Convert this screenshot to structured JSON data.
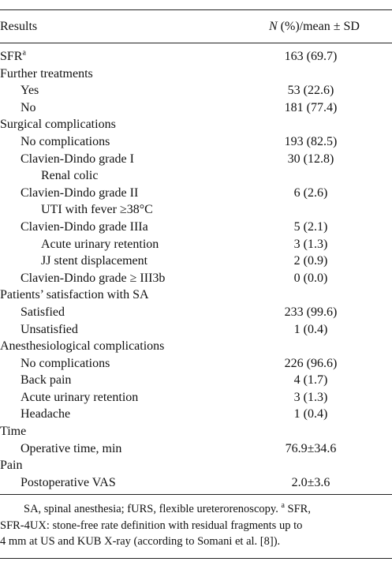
{
  "table": {
    "header": {
      "col1": "Results",
      "col2_italic": "N",
      "col2_rest": " (%)/mean ± SD"
    },
    "rows": [
      {
        "label": "SFR",
        "sup": "a",
        "value": "163 (69.7)",
        "level": 0
      },
      {
        "label": "Further treatments",
        "value": "",
        "level": 0
      },
      {
        "label": "Yes",
        "value": "53 (22.6)",
        "level": 1
      },
      {
        "label": "No",
        "value": "181 (77.4)",
        "level": 1
      },
      {
        "label": "Surgical complications",
        "value": "",
        "level": 0
      },
      {
        "label": "No complications",
        "value": "193 (82.5)",
        "level": 1
      },
      {
        "label": "Clavien-Dindo grade I",
        "value": "30 (12.8)",
        "level": 1
      },
      {
        "label": "Renal colic",
        "value": "",
        "level": 2
      },
      {
        "label": "Clavien-Dindo grade II",
        "value": "6 (2.6)",
        "level": 1
      },
      {
        "label": "UTI with fever ≥38°C",
        "value": "",
        "level": 2
      },
      {
        "label": "Clavien-Dindo grade IIIa",
        "value": "5 (2.1)",
        "level": 1
      },
      {
        "label": "Acute urinary retention",
        "value": "3 (1.3)",
        "level": 2
      },
      {
        "label": "JJ stent displacement",
        "value": "2 (0.9)",
        "level": 2
      },
      {
        "label": "Clavien-Dindo grade ≥ III3b",
        "value": "0 (0.0)",
        "level": 1
      },
      {
        "label": "Patients’ satisfaction with SA",
        "value": "",
        "level": 0
      },
      {
        "label": "Satisfied",
        "value": "233 (99.6)",
        "level": 1
      },
      {
        "label": "Unsatisfied",
        "value": "1 (0.4)",
        "level": 1
      },
      {
        "label": "Anesthesiological complications",
        "value": "",
        "level": 0
      },
      {
        "label": "No complications",
        "value": "226 (96.6)",
        "level": 1
      },
      {
        "label": "Back pain",
        "value": "4 (1.7)",
        "level": 1
      },
      {
        "label": "Acute urinary retention",
        "value": "3 (1.3)",
        "level": 1
      },
      {
        "label": "Headache",
        "value": "1 (0.4)",
        "level": 1
      },
      {
        "label": "Time",
        "value": "",
        "level": 0
      },
      {
        "label": "Operative time, min",
        "value": "76.9±34.6",
        "level": 1
      },
      {
        "label": "Pain",
        "value": "",
        "level": 0
      },
      {
        "label": "Postoperative VAS",
        "value": "2.0±3.6",
        "level": 1
      }
    ],
    "footnote_lines": [
      "SA, spinal anesthesia; fURS, flexible ureterorenoscopy. ",
      "SFR-4UX: stone-free rate definition with residual fragments up to",
      "4 mm at US and KUB X-ray (according to Somani et al. [8])."
    ],
    "footnote_sup": "a",
    "footnote_line1_tail": " SFR,"
  }
}
